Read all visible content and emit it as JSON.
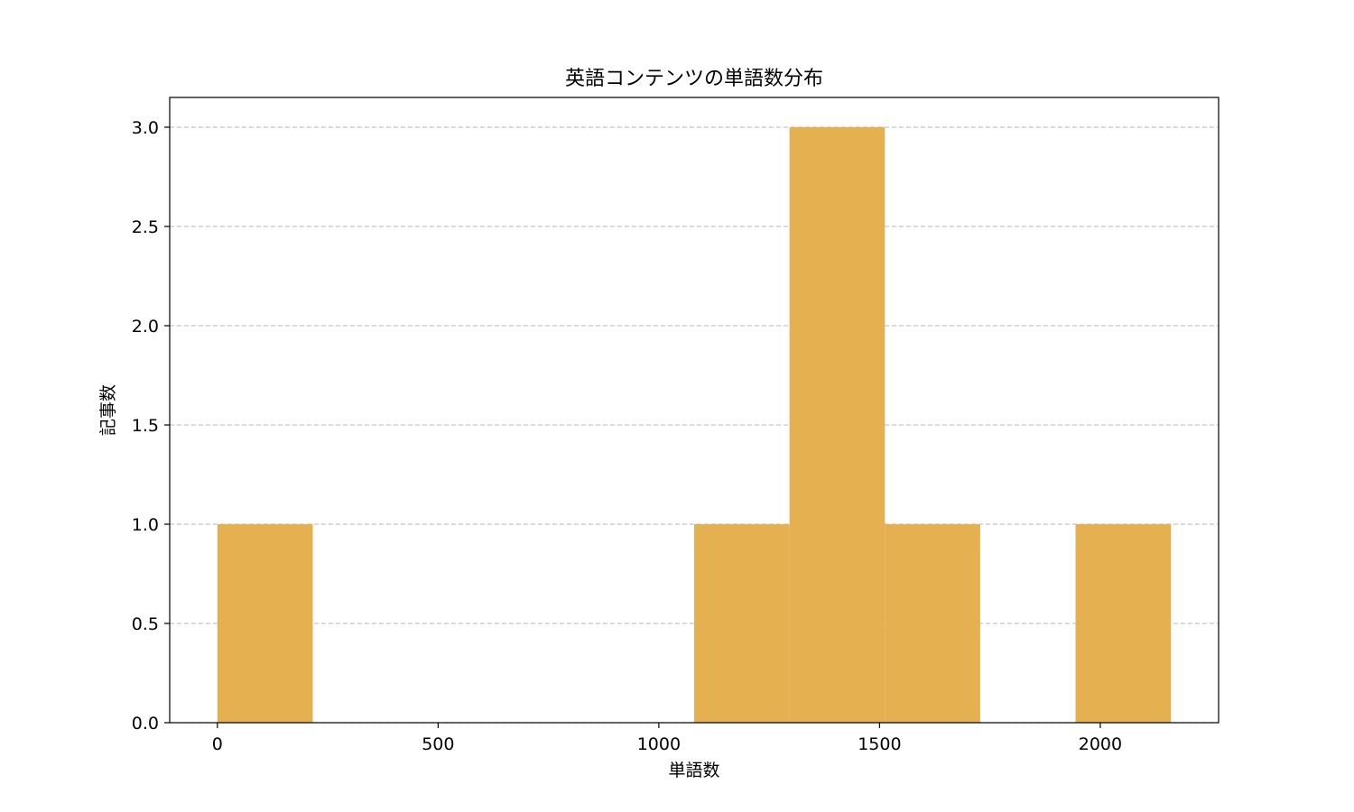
{
  "chart_data": {
    "type": "bar",
    "title": "英語コンテンツの単語数分布",
    "xlabel": "単語数",
    "ylabel": "記事数",
    "xlim": [
      -108,
      2268
    ],
    "ylim": [
      0,
      3.15
    ],
    "xticks": [
      0,
      500,
      1000,
      1500,
      2000
    ],
    "yticks": [
      0.0,
      0.5,
      1.0,
      1.5,
      2.0,
      2.5,
      3.0
    ],
    "grid": "horizontal dashed",
    "bar_color": "#e5b04f",
    "bins": [
      {
        "start": 0,
        "end": 216,
        "count": 1
      },
      {
        "start": 216,
        "end": 432,
        "count": 0
      },
      {
        "start": 432,
        "end": 648,
        "count": 0
      },
      {
        "start": 648,
        "end": 864,
        "count": 0
      },
      {
        "start": 864,
        "end": 1080,
        "count": 0
      },
      {
        "start": 1080,
        "end": 1296,
        "count": 1
      },
      {
        "start": 1296,
        "end": 1512,
        "count": 3
      },
      {
        "start": 1512,
        "end": 1728,
        "count": 1
      },
      {
        "start": 1728,
        "end": 1944,
        "count": 0
      },
      {
        "start": 1944,
        "end": 2160,
        "count": 1
      }
    ]
  }
}
